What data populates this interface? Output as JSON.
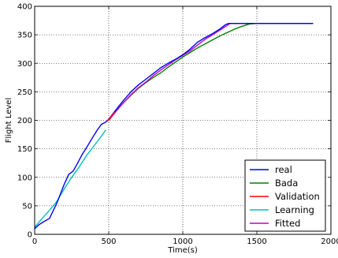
{
  "chart_data": {
    "type": "line",
    "xlabel": "Time(s)",
    "ylabel": "Flight Level",
    "xlim": [
      0,
      2000
    ],
    "ylim": [
      0,
      400
    ],
    "xticks": [
      0,
      500,
      1000,
      1500,
      2000
    ],
    "yticks": [
      0,
      50,
      100,
      150,
      200,
      250,
      300,
      350,
      400
    ],
    "grid": true,
    "legend_position": "lower-right",
    "series": [
      {
        "name": "real",
        "color": "#0000ff",
        "x": [
          0,
          30,
          60,
          100,
          150,
          200,
          230,
          260,
          290,
          320,
          350,
          380,
          420,
          450,
          480,
          500,
          530,
          560,
          600,
          650,
          700,
          750,
          800,
          850,
          900,
          950,
          1000,
          1050,
          1100,
          1150,
          1200,
          1250,
          1290,
          1310,
          1340,
          1400,
          1500,
          1600,
          1700,
          1800,
          1880
        ],
        "y": [
          10,
          17,
          22,
          28,
          55,
          88,
          105,
          111,
          125,
          140,
          152,
          165,
          182,
          193,
          197,
          202,
          212,
          222,
          235,
          250,
          262,
          272,
          282,
          292,
          300,
          307,
          315,
          325,
          337,
          345,
          352,
          360,
          368,
          370,
          370,
          370,
          370,
          370,
          370,
          370,
          370
        ]
      },
      {
        "name": "Bada",
        "color": "#008000",
        "x": [
          500,
          550,
          600,
          650,
          700,
          750,
          800,
          850,
          900,
          950,
          1000,
          1050,
          1100,
          1150,
          1200,
          1250,
          1300,
          1350,
          1400,
          1450,
          1500,
          1600,
          1700,
          1800,
          1880
        ],
        "y": [
          200,
          217,
          231,
          244,
          256,
          266,
          275,
          283,
          293,
          302,
          311,
          319,
          327,
          334,
          341,
          348,
          354,
          360,
          365,
          369,
          370,
          370,
          370,
          370,
          370
        ]
      },
      {
        "name": "Validation",
        "color": "#ff0000",
        "x": [
          490,
          500,
          520,
          540
        ],
        "y": [
          198,
          202,
          208,
          214
        ]
      },
      {
        "name": "Learning",
        "color": "#00bfbf",
        "x": [
          0,
          25,
          50,
          100,
          150,
          200,
          250,
          300,
          350,
          400,
          450,
          480
        ],
        "y": [
          13,
          20,
          28,
          42,
          58,
          80,
          100,
          118,
          138,
          155,
          172,
          183
        ]
      },
      {
        "name": "Fitted",
        "color": "#bf00bf",
        "x": [
          500,
          550,
          600,
          650,
          700,
          750,
          800,
          850,
          900,
          950,
          1000,
          1050,
          1100,
          1150,
          1200,
          1250,
          1290,
          1320,
          1400,
          1500,
          1600,
          1700,
          1800,
          1880
        ],
        "y": [
          200,
          216,
          231,
          245,
          257,
          267,
          278,
          288,
          297,
          306,
          314,
          322,
          332,
          342,
          350,
          358,
          365,
          370,
          370,
          370,
          370,
          370,
          370,
          370
        ]
      }
    ]
  }
}
